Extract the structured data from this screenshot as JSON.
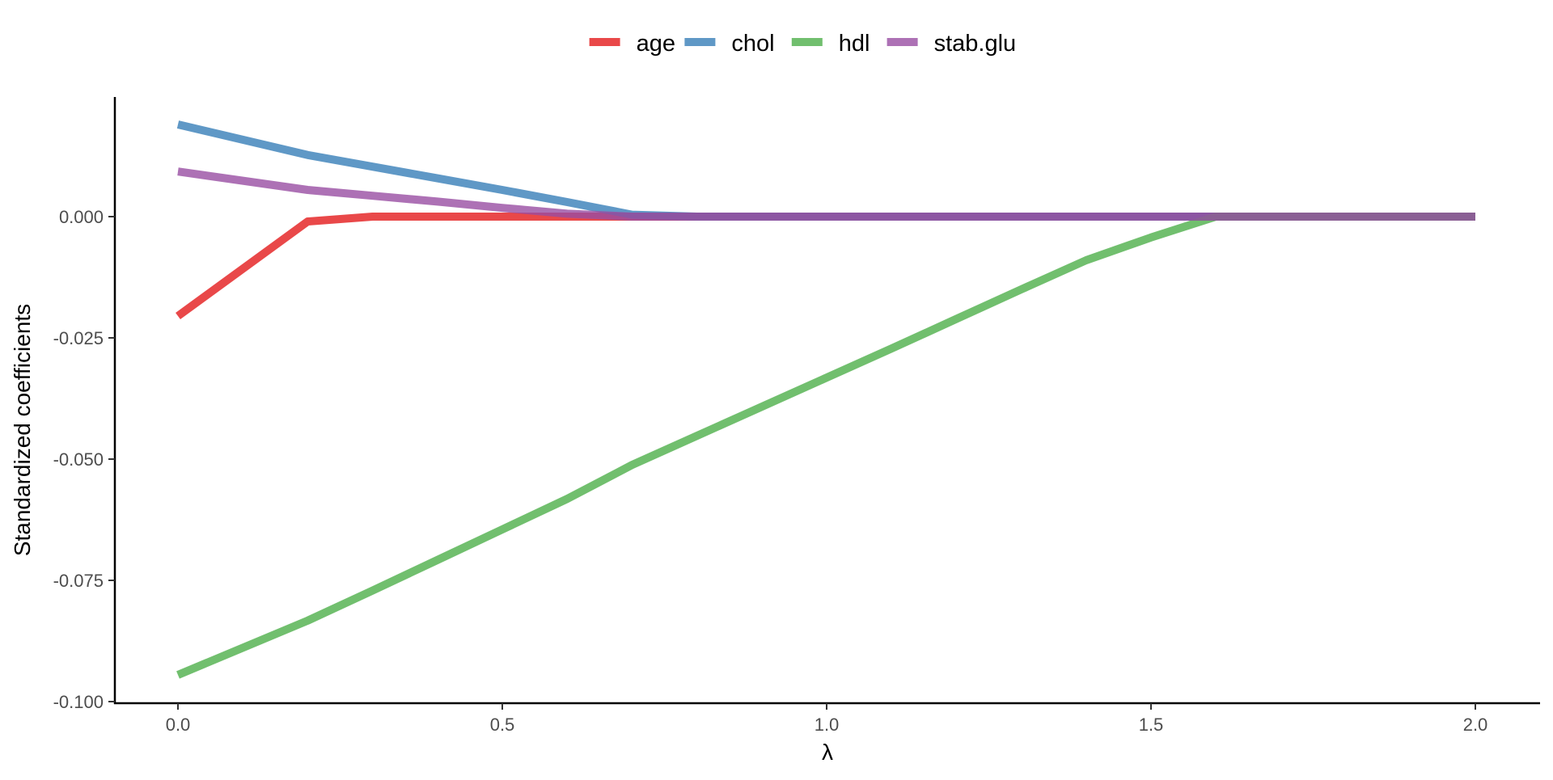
{
  "chart_data": {
    "type": "line",
    "title": "",
    "xlabel": "λ",
    "ylabel": "Standardized coefficients",
    "xlim": [
      -0.1,
      2.1
    ],
    "ylim": [
      -0.1,
      0.025
    ],
    "x_ticks": [
      0.0,
      0.5,
      1.0,
      1.5,
      2.0
    ],
    "x_tick_labels": [
      "0.0",
      "0.5",
      "1.0",
      "1.5",
      "2.0"
    ],
    "y_ticks": [
      -0.1,
      -0.075,
      -0.05,
      -0.025,
      0.0
    ],
    "y_tick_labels": [
      "-0.100",
      "-0.075",
      "-0.050",
      "-0.025",
      "0.000"
    ],
    "grid": false,
    "legend": {
      "position": "top",
      "entries": [
        "age",
        "chol",
        "hdl",
        "stab.glu"
      ]
    },
    "series": [
      {
        "name": "age",
        "color": "#E41A1C",
        "x": [
          0.0,
          0.2,
          0.3,
          0.4,
          0.5,
          0.6,
          0.7,
          0.8,
          0.9,
          1.0,
          1.1,
          1.2,
          1.3,
          1.4,
          1.5,
          1.6,
          1.7,
          1.8,
          1.9,
          2.0
        ],
        "y": [
          -0.0205,
          -0.001,
          0.0,
          0.0,
          0.0,
          0.0,
          0.0,
          0.0,
          0.0,
          0.0,
          0.0,
          0.0,
          0.0,
          0.0,
          0.0,
          0.0,
          0.0,
          0.0,
          0.0,
          0.0
        ]
      },
      {
        "name": "chol",
        "color": "#377EB8",
        "x": [
          0.0,
          0.2,
          0.3,
          0.4,
          0.5,
          0.6,
          0.7,
          0.8,
          0.9,
          1.0,
          1.1,
          1.2,
          1.3,
          1.4,
          1.5,
          1.6,
          1.7,
          1.8,
          1.9,
          2.0
        ],
        "y": [
          0.019,
          0.0127,
          0.0103,
          0.0079,
          0.0055,
          0.003,
          0.0004,
          0.0,
          0.0,
          0.0,
          0.0,
          0.0,
          0.0,
          0.0,
          0.0,
          0.0,
          0.0,
          0.0,
          0.0,
          0.0
        ]
      },
      {
        "name": "hdl",
        "color": "#4DAF4A",
        "x": [
          0.0,
          0.2,
          0.3,
          0.4,
          0.5,
          0.6,
          0.7,
          0.8,
          0.9,
          1.0,
          1.1,
          1.2,
          1.3,
          1.4,
          1.5,
          1.6,
          1.7,
          1.8,
          1.9,
          2.0
        ],
        "y": [
          -0.0945,
          -0.0833,
          -0.0771,
          -0.0708,
          -0.0645,
          -0.0582,
          -0.0512,
          -0.0452,
          -0.0392,
          -0.0332,
          -0.0272,
          -0.0211,
          -0.015,
          -0.009,
          -0.0043,
          0.0,
          0.0,
          0.0,
          0.0,
          0.0
        ]
      },
      {
        "name": "stab.glu",
        "color": "#984EA3",
        "x": [
          0.0,
          0.2,
          0.3,
          0.4,
          0.5,
          0.6,
          0.7,
          0.8,
          0.9,
          1.0,
          1.1,
          1.2,
          1.3,
          1.4,
          1.5,
          1.6,
          1.7,
          1.8,
          1.9,
          2.0
        ],
        "y": [
          0.0093,
          0.0055,
          0.0043,
          0.0031,
          0.0018,
          0.0006,
          0.0,
          0.0,
          0.0,
          0.0,
          0.0,
          0.0,
          0.0,
          0.0,
          0.0,
          0.0,
          0.0,
          0.0,
          0.0,
          0.0
        ]
      }
    ]
  }
}
